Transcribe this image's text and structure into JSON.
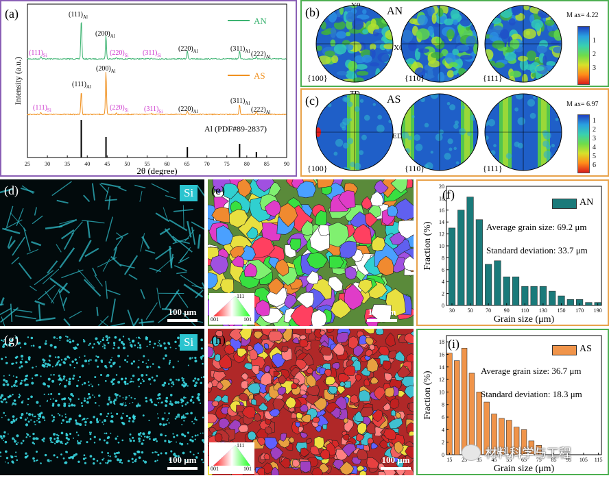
{
  "panel_a": {
    "label": "(a)",
    "ylabel": "Intensity (a.u.)",
    "xlabel": "2θ (degree)",
    "xticks": [
      "25",
      "30",
      "35",
      "40",
      "45",
      "50",
      "55",
      "60",
      "65",
      "70",
      "75",
      "80",
      "85",
      "90"
    ],
    "legend_an": "AN",
    "legend_as": "AS",
    "pdf_label": "Al (PDF#89-2837)",
    "an_peaks": [
      {
        "t": "(111)",
        "sub": "Si",
        "si": true
      },
      {
        "t": "(111)",
        "sub": "Al",
        "si": false
      },
      {
        "t": "(200)",
        "sub": "Al",
        "si": false
      },
      {
        "t": "(220)",
        "sub": "Si",
        "si": true
      },
      {
        "t": "(311)",
        "sub": "Si",
        "si": true
      },
      {
        "t": "(220)",
        "sub": "Al",
        "si": false
      },
      {
        "t": "(311)",
        "sub": "Al",
        "si": false
      },
      {
        "t": "(222)",
        "sub": "Al",
        "si": false
      }
    ],
    "as_peaks": [
      {
        "t": "(111)",
        "sub": "Si",
        "si": true
      },
      {
        "t": "(111)",
        "sub": "Al",
        "si": false
      },
      {
        "t": "(200)",
        "sub": "Al",
        "si": false
      },
      {
        "t": "(220)",
        "sub": "Si",
        "si": true
      },
      {
        "t": "(311)",
        "sub": "Si",
        "si": true
      },
      {
        "t": "(220)",
        "sub": "Al",
        "si": false
      },
      {
        "t": "(311)",
        "sub": "Al",
        "si": false
      },
      {
        "t": "(222)",
        "sub": "Al",
        "si": false
      }
    ],
    "colors": {
      "an": "#3cb371",
      "as": "#f0901e",
      "si": "#cc33cc"
    }
  },
  "panel_b": {
    "label": "(b)",
    "title": "AN",
    "y_axis": "Y0",
    "x_axis": "X0",
    "poles": [
      "{100}",
      "{110}",
      "{111}"
    ],
    "max": "M ax= 4.22",
    "scale": [
      "1",
      "2",
      "3"
    ]
  },
  "panel_c": {
    "label": "(c)",
    "title": "AS",
    "y_axis": "TD",
    "x_axis": "ED",
    "poles": [
      "{100}",
      "{110}",
      "{111}"
    ],
    "max": "M ax= 6.97",
    "scale": [
      "1",
      "2",
      "3",
      "4",
      "5",
      "6"
    ]
  },
  "panel_d": {
    "label": "(d)",
    "element": "Si",
    "scale": "100 μm"
  },
  "panel_e": {
    "label": "(e)",
    "scale": "100 μm",
    "triangle": [
      "111",
      "001",
      "101"
    ]
  },
  "panel_f": {
    "label": "(f)",
    "legend": "AN",
    "avg": "Average grain size: 69.2 μm",
    "std": "Standard deviation: 33.7 μm",
    "color": "#1a7a7a"
  },
  "panel_g": {
    "label": "(g)",
    "element": "Si",
    "scale": "100 μm"
  },
  "panel_h": {
    "label": "(h)",
    "scale": "100 μm",
    "triangle": [
      "111",
      "001",
      "101"
    ]
  },
  "panel_i": {
    "label": "(i)",
    "legend": "AS",
    "avg": "Average grain size: 36.7 μm",
    "std": "Standard deviation: 18.3 μm",
    "color": "#f0944a"
  },
  "watermark": "材料科学与工程",
  "chart_data": [
    {
      "type": "bar",
      "ylabel": "Fraction (%)",
      "xlabel": "Grain size (μm)",
      "x": [
        30,
        40,
        50,
        60,
        70,
        80,
        90,
        100,
        110,
        120,
        130,
        140,
        150,
        160,
        170,
        180,
        190
      ],
      "xticks": [
        "30",
        "50",
        "70",
        "90",
        "110",
        "130",
        "150",
        "170",
        "190"
      ],
      "values": [
        13,
        16,
        18.2,
        14.4,
        6.9,
        7.5,
        4.8,
        4.8,
        3.2,
        3.2,
        3.2,
        2.4,
        1.6,
        1.0,
        1.0,
        0.5,
        0.5
      ],
      "ylim": [
        0,
        20
      ],
      "yticks": [
        "0",
        "2",
        "4",
        "6",
        "8",
        "10",
        "12",
        "14",
        "16",
        "18",
        "20"
      ],
      "series": [
        {
          "name": "AN"
        }
      ]
    },
    {
      "type": "bar",
      "ylabel": "Fraction (%)",
      "xlabel": "Grain size (μm)",
      "x": [
        15,
        20,
        25,
        30,
        35,
        40,
        45,
        50,
        55,
        60,
        65,
        70,
        75
      ],
      "xticks": [
        "15",
        "25",
        "35",
        "45",
        "55",
        "65",
        "75",
        "85",
        "95",
        "105",
        "115"
      ],
      "values": [
        16.2,
        15,
        17,
        13,
        10,
        8.4,
        6.5,
        5.8,
        5.5,
        4.4,
        4,
        2.2,
        1.5
      ],
      "ylim": [
        0,
        19
      ],
      "yticks": [
        "0",
        "2",
        "4",
        "6",
        "8",
        "10",
        "12",
        "14",
        "16",
        "18"
      ],
      "series": [
        {
          "name": "AS"
        }
      ]
    }
  ]
}
